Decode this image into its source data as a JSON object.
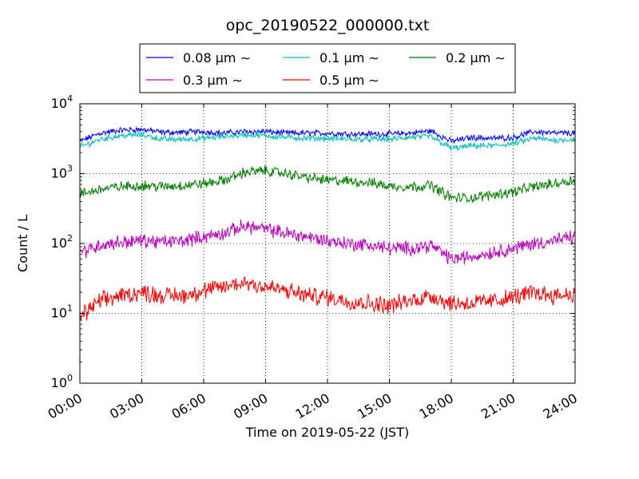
{
  "chart_data": {
    "type": "line",
    "title": "opc_20190522_000000.txt",
    "xlabel": "Time on 2019-05-22 (JST)",
    "ylabel": "Count / L",
    "y_scale": "log",
    "xlim": [
      0,
      24
    ],
    "ylim": [
      1,
      10000
    ],
    "grid": true,
    "legend_position": "top-center",
    "x_ticks": [
      {
        "value": 0,
        "label": "00:00"
      },
      {
        "value": 3,
        "label": "03:00"
      },
      {
        "value": 6,
        "label": "06:00"
      },
      {
        "value": 9,
        "label": "09:00"
      },
      {
        "value": 12,
        "label": "12:00"
      },
      {
        "value": 15,
        "label": "15:00"
      },
      {
        "value": 18,
        "label": "18:00"
      },
      {
        "value": 21,
        "label": "21:00"
      },
      {
        "value": 24,
        "label": "24:00"
      }
    ],
    "y_ticks": [
      {
        "value": 1,
        "base": "10",
        "exp": "0"
      },
      {
        "value": 10,
        "base": "10",
        "exp": "1"
      },
      {
        "value": 100,
        "base": "10",
        "exp": "2"
      },
      {
        "value": 1000,
        "base": "10",
        "exp": "3"
      },
      {
        "value": 10000,
        "base": "10",
        "exp": "4"
      }
    ],
    "x": [
      0,
      1,
      2,
      3,
      4,
      5,
      6,
      7,
      8,
      9,
      10,
      11,
      12,
      13,
      14,
      15,
      16,
      17,
      18,
      19,
      20,
      21,
      22,
      23,
      24
    ],
    "series": [
      {
        "name": "0.08 µm ∼",
        "color": "#0000ff",
        "noise": 0.035,
        "values": [
          2900,
          3800,
          4200,
          4300,
          3900,
          3900,
          4000,
          3800,
          4000,
          4000,
          3800,
          3800,
          3800,
          3700,
          3700,
          3700,
          3800,
          4100,
          2900,
          3300,
          3200,
          3300,
          4000,
          3800,
          3800
        ]
      },
      {
        "name": "0.1 µm ∼",
        "color": "#00bfbf",
        "noise": 0.035,
        "values": [
          2400,
          3100,
          3500,
          3600,
          3100,
          3100,
          3200,
          3400,
          3600,
          3500,
          3300,
          3200,
          3200,
          3100,
          3100,
          3100,
          3300,
          3400,
          2300,
          2500,
          2500,
          2700,
          3200,
          3000,
          3100
        ]
      },
      {
        "name": "0.2 µm ∼",
        "color": "#008000",
        "noise": 0.06,
        "values": [
          500,
          600,
          650,
          680,
          650,
          680,
          720,
          800,
          1050,
          1100,
          1000,
          880,
          800,
          780,
          750,
          660,
          650,
          680,
          450,
          450,
          500,
          550,
          650,
          720,
          820
        ]
      },
      {
        "name": "0.3 µm ∼",
        "color": "#bf00bf",
        "noise": 0.08,
        "values": [
          75,
          95,
          105,
          110,
          105,
          110,
          125,
          140,
          180,
          160,
          140,
          125,
          110,
          100,
          95,
          85,
          85,
          95,
          60,
          65,
          75,
          85,
          100,
          110,
          125
        ]
      },
      {
        "name": "0.5 µm ∼",
        "color": "#ff0000",
        "noise": 0.1,
        "values": [
          9,
          15,
          18,
          20,
          18,
          18,
          21,
          24,
          28,
          24,
          21,
          18,
          17,
          15,
          14,
          13,
          15,
          18,
          14,
          14,
          15,
          17,
          20,
          18,
          19
        ]
      }
    ]
  }
}
